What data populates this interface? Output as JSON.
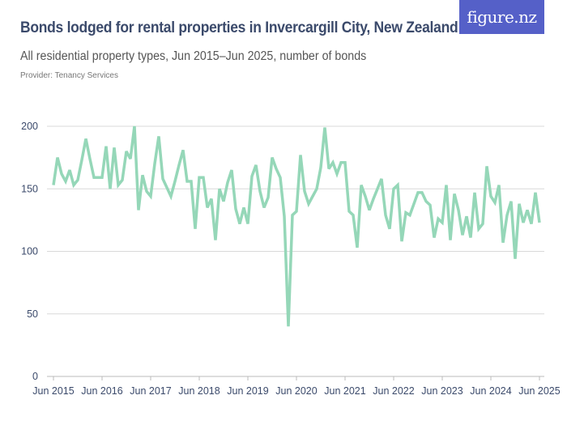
{
  "title": "Bonds lodged for rental properties in Invercargill City, New Zealand",
  "subtitle": "All residential property types, Jun 2015–Jun 2025, number of bonds",
  "provider": "Provider: Tenancy Services",
  "logo": "figure.nz",
  "colors": {
    "line": "#95d7b8",
    "logo_bg": "#5560c8",
    "text": "#3b4a6b",
    "grid": "#d9d9d9"
  },
  "chart_data": {
    "type": "line",
    "title": "Bonds lodged for rental properties in Invercargill City, New Zealand",
    "xlabel": "",
    "ylabel": "",
    "x_start": "Jun 2015",
    "x_end": "Jun 2025",
    "frequency": "monthly",
    "ylim": [
      0,
      200
    ],
    "y_ticks": [
      0,
      50,
      100,
      150,
      200
    ],
    "x_ticks": [
      "Jun 2015",
      "Jun 2016",
      "Jun 2017",
      "Jun 2018",
      "Jun 2019",
      "Jun 2020",
      "Jun 2021",
      "Jun 2022",
      "Jun 2023",
      "Jun 2024",
      "Jun 2025"
    ],
    "grid": true,
    "values": [
      153,
      175,
      162,
      156,
      165,
      153,
      157,
      173,
      190,
      174,
      159,
      159,
      159,
      184,
      150,
      183,
      153,
      157,
      180,
      174,
      200,
      133,
      161,
      148,
      144,
      170,
      192,
      158,
      151,
      144,
      156,
      169,
      181,
      156,
      156,
      118,
      159,
      159,
      135,
      142,
      109,
      150,
      140,
      155,
      165,
      134,
      122,
      135,
      122,
      160,
      169,
      148,
      135,
      143,
      175,
      166,
      159,
      128,
      40,
      129,
      132,
      177,
      148,
      138,
      144,
      150,
      167,
      199,
      166,
      171,
      162,
      171,
      171,
      132,
      129,
      103,
      153,
      144,
      133,
      142,
      150,
      158,
      129,
      118,
      150,
      153,
      108,
      131,
      129,
      138,
      147,
      147,
      140,
      137,
      111,
      126,
      123,
      153,
      109,
      146,
      133,
      113,
      128,
      111,
      147,
      118,
      122,
      168,
      144,
      139,
      153,
      107,
      129,
      140,
      94,
      138,
      123,
      133,
      122,
      147,
      123
    ]
  }
}
